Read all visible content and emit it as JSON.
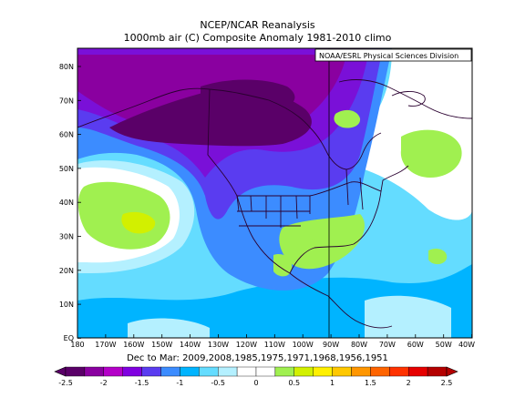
{
  "title_line1": "NCEP/NCAR Reanalysis",
  "title_line2": "1000mb air (C) Composite Anomaly 1981-2010 climo",
  "credit": "NOAA/ESRL Physical Sciences Division",
  "caption": "Dec to Mar: 2009,2008,1985,1975,1971,1968,1956,1951",
  "lat_labels": [
    "80N",
    "70N",
    "60N",
    "50N",
    "40N",
    "30N",
    "20N",
    "10N",
    "EQ"
  ],
  "lon_labels": [
    "180",
    "170W",
    "160W",
    "150W",
    "140W",
    "130W",
    "120W",
    "110W",
    "100W",
    "90W",
    "80W",
    "70W",
    "60W",
    "50W",
    "40W"
  ],
  "colorbar": {
    "ticks": [
      "-2.5",
      "-2",
      "-1.5",
      "-1",
      "-0.5",
      "0",
      "0.5",
      "1",
      "1.5",
      "2",
      "2.5"
    ],
    "colors": [
      "#5a0068",
      "#8a00a0",
      "#b400c8",
      "#8000e0",
      "#5a3cf0",
      "#3c8cff",
      "#00b4ff",
      "#64dcff",
      "#b4f0ff",
      "#ffffff",
      "#ffffff",
      "#a0f050",
      "#d2f000",
      "#fff000",
      "#ffc800",
      "#ff9600",
      "#ff6400",
      "#ff3200",
      "#e60000",
      "#b40000"
    ]
  },
  "field_colors": {
    "deep_purple": "#5a0068",
    "purple": "#8a00a0",
    "violet": "#7a10d8",
    "indigo": "#5a3cf0",
    "blue": "#3c8cff",
    "sky": "#00b4ff",
    "light_sky": "#64dcff",
    "pale": "#b4f0ff",
    "green": "#a0f050",
    "yellow_green": "#d2f000"
  }
}
